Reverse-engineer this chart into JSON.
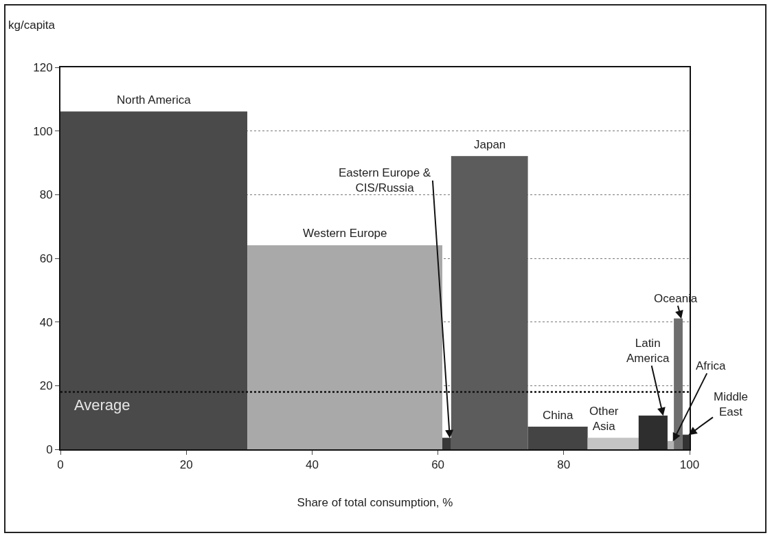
{
  "chart_data": {
    "type": "area",
    "xlabel": "Share of total consumption, %",
    "ylabel": "kg/capita",
    "xlim": [
      0,
      100
    ],
    "xticks": [
      0,
      20,
      40,
      60,
      80,
      100
    ],
    "ylim": [
      0,
      120
    ],
    "yticks": [
      0,
      20,
      40,
      60,
      80,
      100,
      120
    ],
    "grid": "y",
    "line_style": "dotted",
    "legend": false,
    "ref_lines": [
      {
        "axis": "y",
        "value": 18,
        "label": "Average",
        "line_style": "dotted"
      }
    ],
    "series": [
      {
        "name": "North America",
        "color": "#4a4a4a",
        "x": [
          0,
          29.7
        ],
        "values": [
          106,
          106
        ]
      },
      {
        "name": "Western Europe",
        "color": "#a9a9a9",
        "x": [
          29.7,
          60.7
        ],
        "values": [
          64,
          64
        ]
      },
      {
        "name": "Eastern Europe & CIS/Russia",
        "color": "#383838",
        "x": [
          60.7,
          62.1
        ],
        "values": [
          3.5,
          3.5
        ]
      },
      {
        "name": "Japan",
        "color": "#5c5c5c",
        "x": [
          62.1,
          74.3
        ],
        "values": [
          92,
          92
        ]
      },
      {
        "name": "China",
        "color": "#444444",
        "x": [
          74.3,
          83.8
        ],
        "values": [
          7,
          7
        ]
      },
      {
        "name": "Other Asia",
        "color": "#c4c4c4",
        "x": [
          83.8,
          91.9
        ],
        "values": [
          3.5,
          3.5
        ]
      },
      {
        "name": "Latin America",
        "color": "#2e2e2e",
        "x": [
          91.9,
          96.5
        ],
        "values": [
          10.5,
          10.5
        ]
      },
      {
        "name": "Africa",
        "color": "#b3b3b3",
        "x": [
          96.5,
          97.5
        ],
        "values": [
          2.5,
          2.5
        ]
      },
      {
        "name": "Oceania",
        "color": "#6e6e6e",
        "x": [
          97.5,
          98.9
        ],
        "values": [
          41,
          41
        ]
      },
      {
        "name": "Middle East",
        "color": "#333333",
        "x": [
          98.9,
          100
        ],
        "values": [
          4.5,
          4.5
        ]
      }
    ]
  }
}
